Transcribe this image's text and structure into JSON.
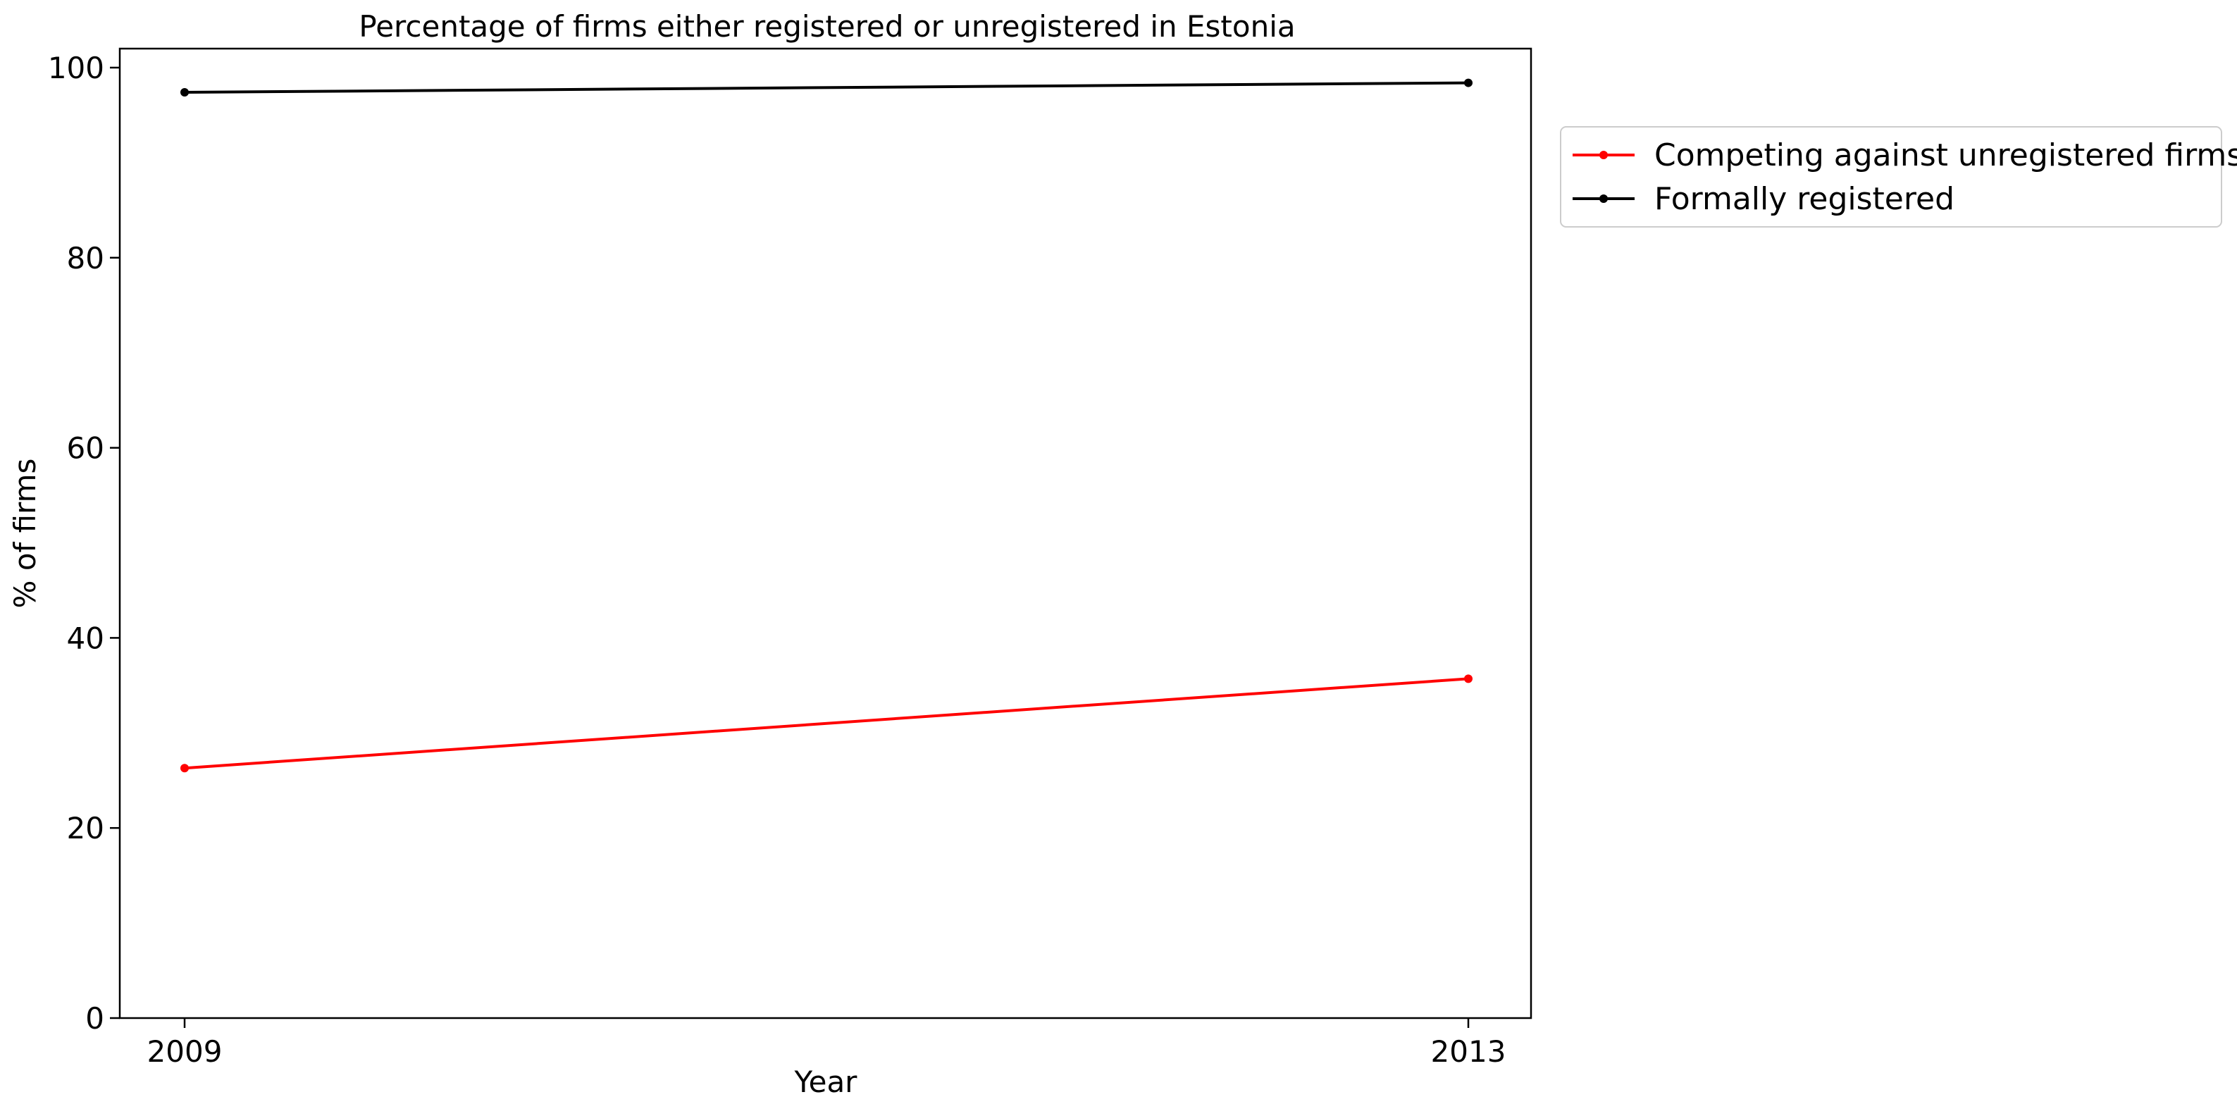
{
  "chart_data": {
    "type": "line",
    "title": "Percentage of firms either registered or unregistered in Estonia",
    "xlabel": "Year",
    "ylabel": "% of firms",
    "x": [
      "2009",
      "2013"
    ],
    "ylim": [
      0,
      102
    ],
    "yticks": [
      "0",
      "20",
      "40",
      "60",
      "80",
      "100"
    ],
    "grid": false,
    "legend_position": "outside-right-top",
    "series": [
      {
        "name": "Competing against unregistered firms",
        "color": "#ff0000",
        "values": [
          26.3,
          35.7
        ]
      },
      {
        "name": "Formally registered",
        "color": "#000000",
        "values": [
          97.4,
          98.4
        ]
      }
    ]
  }
}
